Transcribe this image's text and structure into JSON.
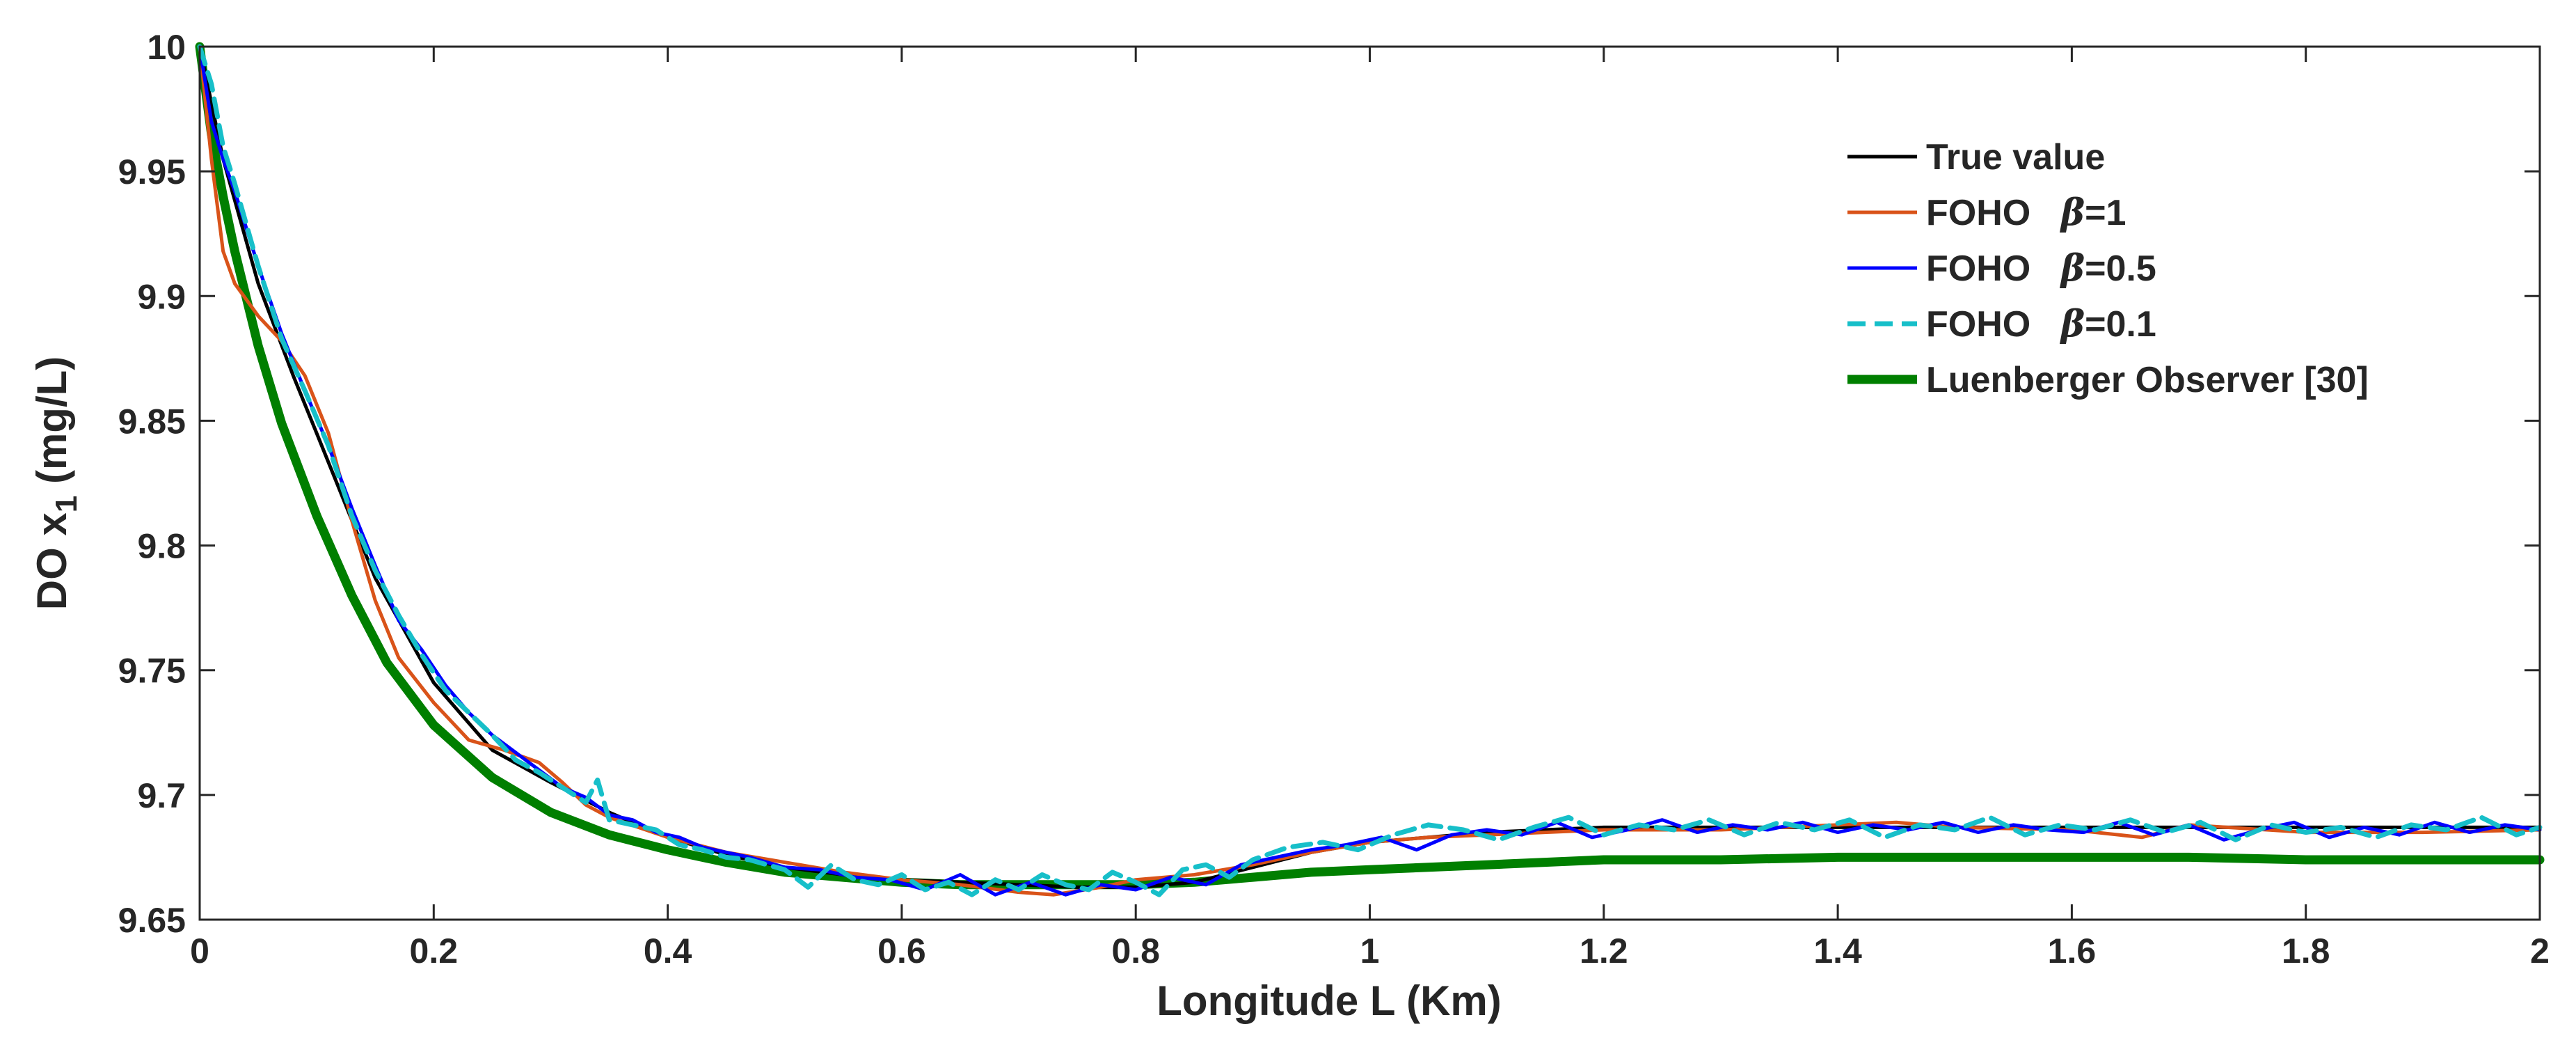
{
  "chart_data": {
    "type": "line",
    "xlabel": "Longitude L (Km)",
    "ylabel_main": "DO  x",
    "ylabel_sub": "1",
    "ylabel_unit": " (mg/L)",
    "xlim": [
      0,
      2
    ],
    "ylim": [
      9.65,
      10
    ],
    "xticks": [
      0,
      0.2,
      0.4,
      0.6,
      0.8,
      1,
      1.2,
      1.4,
      1.6,
      1.8,
      2
    ],
    "xtick_labels": [
      "0",
      "0.2",
      "0.4",
      "0.6",
      "0.8",
      "1",
      "1.2",
      "1.4",
      "1.6",
      "1.8",
      "2"
    ],
    "yticks": [
      9.65,
      9.7,
      9.75,
      9.8,
      9.85,
      9.9,
      9.95,
      10
    ],
    "ytick_labels": [
      "9.65",
      "9.7",
      "9.75",
      "9.8",
      "9.85",
      "9.9",
      "9.95",
      "10"
    ],
    "grid": false,
    "legend_position": "top-right",
    "series": [
      {
        "name": "True value",
        "legend_prefix": "True value",
        "legend_beta": "",
        "color": "#000000",
        "style": "solid",
        "x": [
          0,
          0.02,
          0.05,
          0.08,
          0.1,
          0.15,
          0.2,
          0.25,
          0.3,
          0.35,
          0.4,
          0.45,
          0.5,
          0.55,
          0.6,
          0.65,
          0.7,
          0.75,
          0.8,
          0.85,
          0.9,
          0.95,
          1.0,
          1.1,
          1.2,
          1.3,
          1.4,
          1.5,
          1.6,
          1.7,
          1.8,
          1.9,
          2.0
        ],
        "y": [
          10.0,
          9.955,
          9.905,
          9.868,
          9.845,
          9.787,
          9.745,
          9.718,
          9.705,
          9.693,
          9.683,
          9.676,
          9.671,
          9.668,
          9.666,
          9.665,
          9.664,
          9.663,
          9.663,
          9.665,
          9.671,
          9.677,
          9.681,
          9.685,
          9.687,
          9.687,
          9.687,
          9.687,
          9.687,
          9.687,
          9.687,
          9.687,
          9.687
        ]
      },
      {
        "name": "FOHO β=1",
        "legend_prefix": "FOHO   ",
        "legend_beta": "=1",
        "color": "#d95319",
        "style": "solid",
        "x": [
          0,
          0.01,
          0.02,
          0.03,
          0.05,
          0.07,
          0.09,
          0.11,
          0.13,
          0.15,
          0.17,
          0.2,
          0.23,
          0.26,
          0.29,
          0.31,
          0.33,
          0.35,
          0.4,
          0.45,
          0.5,
          0.55,
          0.6,
          0.65,
          0.7,
          0.73,
          0.77,
          0.8,
          0.85,
          0.9,
          0.95,
          1.0,
          1.05,
          1.1,
          1.2,
          1.3,
          1.4,
          1.45,
          1.5,
          1.6,
          1.66,
          1.7,
          1.8,
          1.9,
          2.0
        ],
        "y": [
          10.0,
          9.955,
          9.918,
          9.905,
          9.892,
          9.882,
          9.868,
          9.845,
          9.81,
          9.778,
          9.755,
          9.737,
          9.722,
          9.718,
          9.713,
          9.705,
          9.696,
          9.691,
          9.683,
          9.677,
          9.673,
          9.669,
          9.666,
          9.664,
          9.661,
          9.66,
          9.663,
          9.666,
          9.668,
          9.672,
          9.677,
          9.681,
          9.683,
          9.684,
          9.686,
          9.686,
          9.688,
          9.689,
          9.687,
          9.686,
          9.683,
          9.688,
          9.685,
          9.685,
          9.686
        ]
      },
      {
        "name": "FOHO β=0.5",
        "legend_prefix": "FOHO   ",
        "legend_beta": "=0.5",
        "color": "#0000ff",
        "style": "solid",
        "x": [
          0,
          0.01,
          0.02,
          0.03,
          0.05,
          0.07,
          0.09,
          0.11,
          0.13,
          0.15,
          0.17,
          0.19,
          0.21,
          0.23,
          0.25,
          0.27,
          0.29,
          0.31,
          0.33,
          0.35,
          0.37,
          0.39,
          0.41,
          0.43,
          0.45,
          0.47,
          0.5,
          0.53,
          0.56,
          0.59,
          0.62,
          0.65,
          0.68,
          0.71,
          0.74,
          0.77,
          0.8,
          0.83,
          0.86,
          0.89,
          0.92,
          0.95,
          0.98,
          1.01,
          1.04,
          1.07,
          1.1,
          1.13,
          1.16,
          1.19,
          1.22,
          1.25,
          1.28,
          1.31,
          1.34,
          1.37,
          1.4,
          1.43,
          1.46,
          1.49,
          1.52,
          1.55,
          1.58,
          1.61,
          1.64,
          1.67,
          1.7,
          1.73,
          1.76,
          1.79,
          1.82,
          1.85,
          1.88,
          1.91,
          1.94,
          1.97,
          2.0
        ],
        "y": [
          10.0,
          9.97,
          9.955,
          9.942,
          9.912,
          9.885,
          9.862,
          9.84,
          9.815,
          9.792,
          9.77,
          9.758,
          9.744,
          9.733,
          9.724,
          9.717,
          9.71,
          9.703,
          9.699,
          9.692,
          9.69,
          9.685,
          9.683,
          9.679,
          9.677,
          9.675,
          9.671,
          9.67,
          9.667,
          9.666,
          9.662,
          9.668,
          9.66,
          9.665,
          9.66,
          9.664,
          9.662,
          9.667,
          9.664,
          9.672,
          9.675,
          9.678,
          9.68,
          9.683,
          9.678,
          9.684,
          9.686,
          9.684,
          9.689,
          9.683,
          9.686,
          9.69,
          9.685,
          9.688,
          9.686,
          9.689,
          9.685,
          9.688,
          9.686,
          9.689,
          9.685,
          9.688,
          9.686,
          9.685,
          9.689,
          9.684,
          9.688,
          9.682,
          9.686,
          9.689,
          9.683,
          9.687,
          9.684,
          9.689,
          9.685,
          9.688,
          9.686
        ]
      },
      {
        "name": "FOHO β=0.1",
        "legend_prefix": "FOHO   ",
        "legend_beta": "=0.1",
        "color": "#17bfc9",
        "style": "dashed",
        "x": [
          0,
          0.01,
          0.02,
          0.03,
          0.05,
          0.07,
          0.09,
          0.11,
          0.13,
          0.15,
          0.17,
          0.19,
          0.21,
          0.23,
          0.25,
          0.27,
          0.29,
          0.31,
          0.33,
          0.34,
          0.35,
          0.37,
          0.39,
          0.41,
          0.43,
          0.45,
          0.47,
          0.5,
          0.52,
          0.54,
          0.56,
          0.58,
          0.6,
          0.62,
          0.64,
          0.66,
          0.68,
          0.7,
          0.72,
          0.74,
          0.76,
          0.78,
          0.8,
          0.82,
          0.84,
          0.86,
          0.88,
          0.9,
          0.93,
          0.96,
          0.99,
          1.02,
          1.05,
          1.08,
          1.11,
          1.14,
          1.17,
          1.2,
          1.23,
          1.26,
          1.29,
          1.32,
          1.35,
          1.38,
          1.41,
          1.44,
          1.47,
          1.5,
          1.53,
          1.56,
          1.59,
          1.62,
          1.65,
          1.68,
          1.71,
          1.74,
          1.77,
          1.8,
          1.83,
          1.86,
          1.89,
          1.92,
          1.95,
          1.98,
          2.0
        ],
        "y": [
          10.0,
          9.985,
          9.96,
          9.945,
          9.912,
          9.883,
          9.862,
          9.84,
          9.812,
          9.79,
          9.772,
          9.756,
          9.742,
          9.733,
          9.724,
          9.714,
          9.709,
          9.703,
          9.697,
          9.706,
          9.69,
          9.688,
          9.686,
          9.68,
          9.678,
          9.675,
          9.674,
          9.67,
          9.663,
          9.672,
          9.666,
          9.664,
          9.668,
          9.662,
          9.665,
          9.66,
          9.666,
          9.662,
          9.668,
          9.664,
          9.662,
          9.669,
          9.665,
          9.66,
          9.67,
          9.672,
          9.667,
          9.674,
          9.679,
          9.681,
          9.678,
          9.684,
          9.688,
          9.686,
          9.682,
          9.687,
          9.691,
          9.684,
          9.688,
          9.686,
          9.69,
          9.684,
          9.689,
          9.686,
          9.69,
          9.683,
          9.688,
          9.686,
          9.691,
          9.684,
          9.688,
          9.686,
          9.69,
          9.685,
          9.689,
          9.682,
          9.688,
          9.685,
          9.687,
          9.683,
          9.688,
          9.686,
          9.691,
          9.684,
          9.687
        ]
      },
      {
        "name": "Luenberger Observer [30]",
        "legend_prefix": "Luenberger Observer [30]",
        "legend_beta": "",
        "color": "#007f00",
        "style": "thick",
        "x": [
          0,
          0.01,
          0.02,
          0.03,
          0.05,
          0.07,
          0.1,
          0.13,
          0.16,
          0.2,
          0.25,
          0.3,
          0.35,
          0.4,
          0.45,
          0.5,
          0.55,
          0.6,
          0.65,
          0.7,
          0.75,
          0.8,
          0.85,
          0.9,
          0.95,
          1.0,
          1.1,
          1.2,
          1.3,
          1.4,
          1.5,
          1.6,
          1.7,
          1.8,
          1.9,
          2.0
        ],
        "y": [
          10.0,
          9.965,
          9.94,
          9.918,
          9.88,
          9.849,
          9.812,
          9.78,
          9.753,
          9.728,
          9.707,
          9.693,
          9.684,
          9.678,
          9.673,
          9.669,
          9.667,
          9.665,
          9.664,
          9.664,
          9.664,
          9.664,
          9.665,
          9.667,
          9.669,
          9.67,
          9.672,
          9.674,
          9.674,
          9.675,
          9.675,
          9.675,
          9.675,
          9.674,
          9.674,
          9.674
        ]
      }
    ]
  }
}
